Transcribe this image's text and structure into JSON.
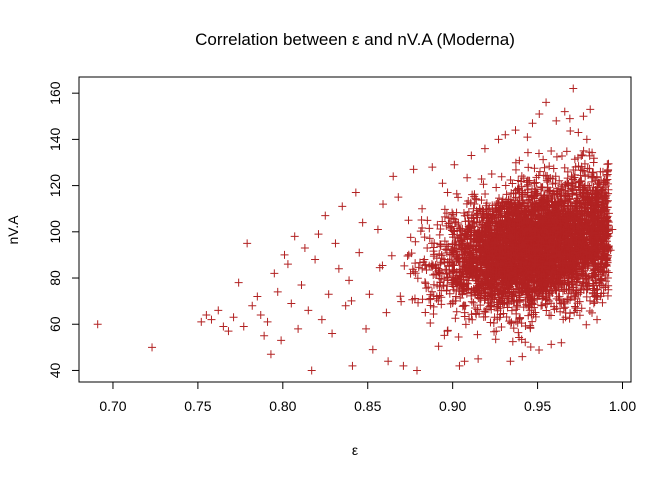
{
  "chart_data": {
    "type": "scatter",
    "title": "Correlation between  ε  and nV.A (Moderna)",
    "xlabel": "ε",
    "ylabel": "nV.A",
    "xlim": [
      0.68,
      1.005
    ],
    "ylim": [
      35,
      167
    ],
    "xticks": [
      0.7,
      0.75,
      0.8,
      0.85,
      0.9,
      0.95,
      1.0
    ],
    "xtick_labels": [
      "0.70",
      "0.75",
      "0.80",
      "0.85",
      "0.90",
      "0.95",
      "1.00"
    ],
    "yticks": [
      40,
      60,
      80,
      100,
      120,
      140,
      160
    ],
    "ytick_labels": [
      "40",
      "60",
      "80",
      "100",
      "120",
      "140",
      "160"
    ],
    "grid": false,
    "legend": "none",
    "marker": "plus",
    "color": "#b22222",
    "series": [
      {
        "name": "",
        "points": [
          [
            0.691,
            60
          ],
          [
            0.723,
            50
          ],
          [
            0.752,
            61
          ],
          [
            0.755,
            64
          ],
          [
            0.758,
            62
          ],
          [
            0.762,
            66
          ],
          [
            0.765,
            59
          ],
          [
            0.768,
            57
          ],
          [
            0.771,
            63
          ],
          [
            0.774,
            78
          ],
          [
            0.777,
            59
          ],
          [
            0.779,
            95
          ],
          [
            0.782,
            68
          ],
          [
            0.785,
            72
          ],
          [
            0.787,
            64
          ],
          [
            0.789,
            55
          ],
          [
            0.791,
            61
          ],
          [
            0.793,
            47
          ],
          [
            0.795,
            82
          ],
          [
            0.797,
            74
          ],
          [
            0.799,
            53
          ],
          [
            0.801,
            90
          ],
          [
            0.803,
            86
          ],
          [
            0.805,
            69
          ],
          [
            0.807,
            98
          ],
          [
            0.809,
            58
          ],
          [
            0.811,
            77
          ],
          [
            0.813,
            93
          ],
          [
            0.815,
            66
          ],
          [
            0.817,
            40
          ],
          [
            0.819,
            88
          ],
          [
            0.821,
            99
          ],
          [
            0.823,
            62
          ],
          [
            0.825,
            107
          ],
          [
            0.827,
            73
          ],
          [
            0.829,
            56
          ],
          [
            0.831,
            95
          ],
          [
            0.833,
            84
          ],
          [
            0.835,
            111
          ],
          [
            0.837,
            68
          ],
          [
            0.839,
            79
          ],
          [
            0.841,
            42
          ],
          [
            0.843,
            117
          ],
          [
            0.845,
            91
          ],
          [
            0.847,
            104
          ],
          [
            0.849,
            58
          ],
          [
            0.851,
            73
          ],
          [
            0.853,
            49
          ],
          [
            0.856,
            101
          ],
          [
            0.859,
            112
          ],
          [
            0.862,
            44
          ],
          [
            0.865,
            124
          ],
          [
            0.868,
            115
          ],
          [
            0.871,
            42
          ],
          [
            0.874,
            105
          ],
          [
            0.877,
            127
          ],
          [
            0.879,
            40
          ],
          [
            0.882,
            110
          ],
          [
            0.885,
            93
          ],
          [
            0.888,
            128
          ],
          [
            0.891,
            103
          ],
          [
            0.894,
            121
          ],
          [
            0.897,
            117
          ],
          [
            0.901,
            129
          ],
          [
            0.904,
            42
          ],
          [
            0.907,
            44
          ],
          [
            0.911,
            133
          ],
          [
            0.915,
            45
          ],
          [
            0.919,
            136
          ],
          [
            0.923,
            125
          ],
          [
            0.927,
            140
          ],
          [
            0.931,
            142
          ],
          [
            0.934,
            44
          ],
          [
            0.937,
            144
          ],
          [
            0.941,
            46
          ],
          [
            0.944,
            141
          ],
          [
            0.947,
            147
          ],
          [
            0.951,
            151
          ],
          [
            0.955,
            156
          ],
          [
            0.958,
            135
          ],
          [
            0.961,
            148
          ],
          [
            0.964,
            52
          ],
          [
            0.966,
            152
          ],
          [
            0.969,
            149
          ],
          [
            0.971,
            162
          ],
          [
            0.974,
            143
          ],
          [
            0.977,
            150
          ],
          [
            0.979,
            140
          ],
          [
            0.981,
            153
          ],
          [
            0.983,
            130
          ],
          [
            0.985,
            62
          ],
          [
            0.987,
            126
          ],
          [
            0.989,
            119
          ],
          [
            0.99,
            76
          ],
          [
            0.992,
            108
          ],
          [
            0.993,
            92
          ],
          [
            0.994,
            101
          ]
        ]
      }
    ],
    "dense_region": {
      "x_center": 0.948,
      "x_spread": 0.026,
      "x_min": 0.84,
      "x_max": 0.992,
      "y_center_at_x_min": 78,
      "y_center_at_x_max": 100,
      "y_spread_at_x_min": 9,
      "y_spread_at_x_max": 14,
      "y_min": 48,
      "y_max": 150
    }
  }
}
